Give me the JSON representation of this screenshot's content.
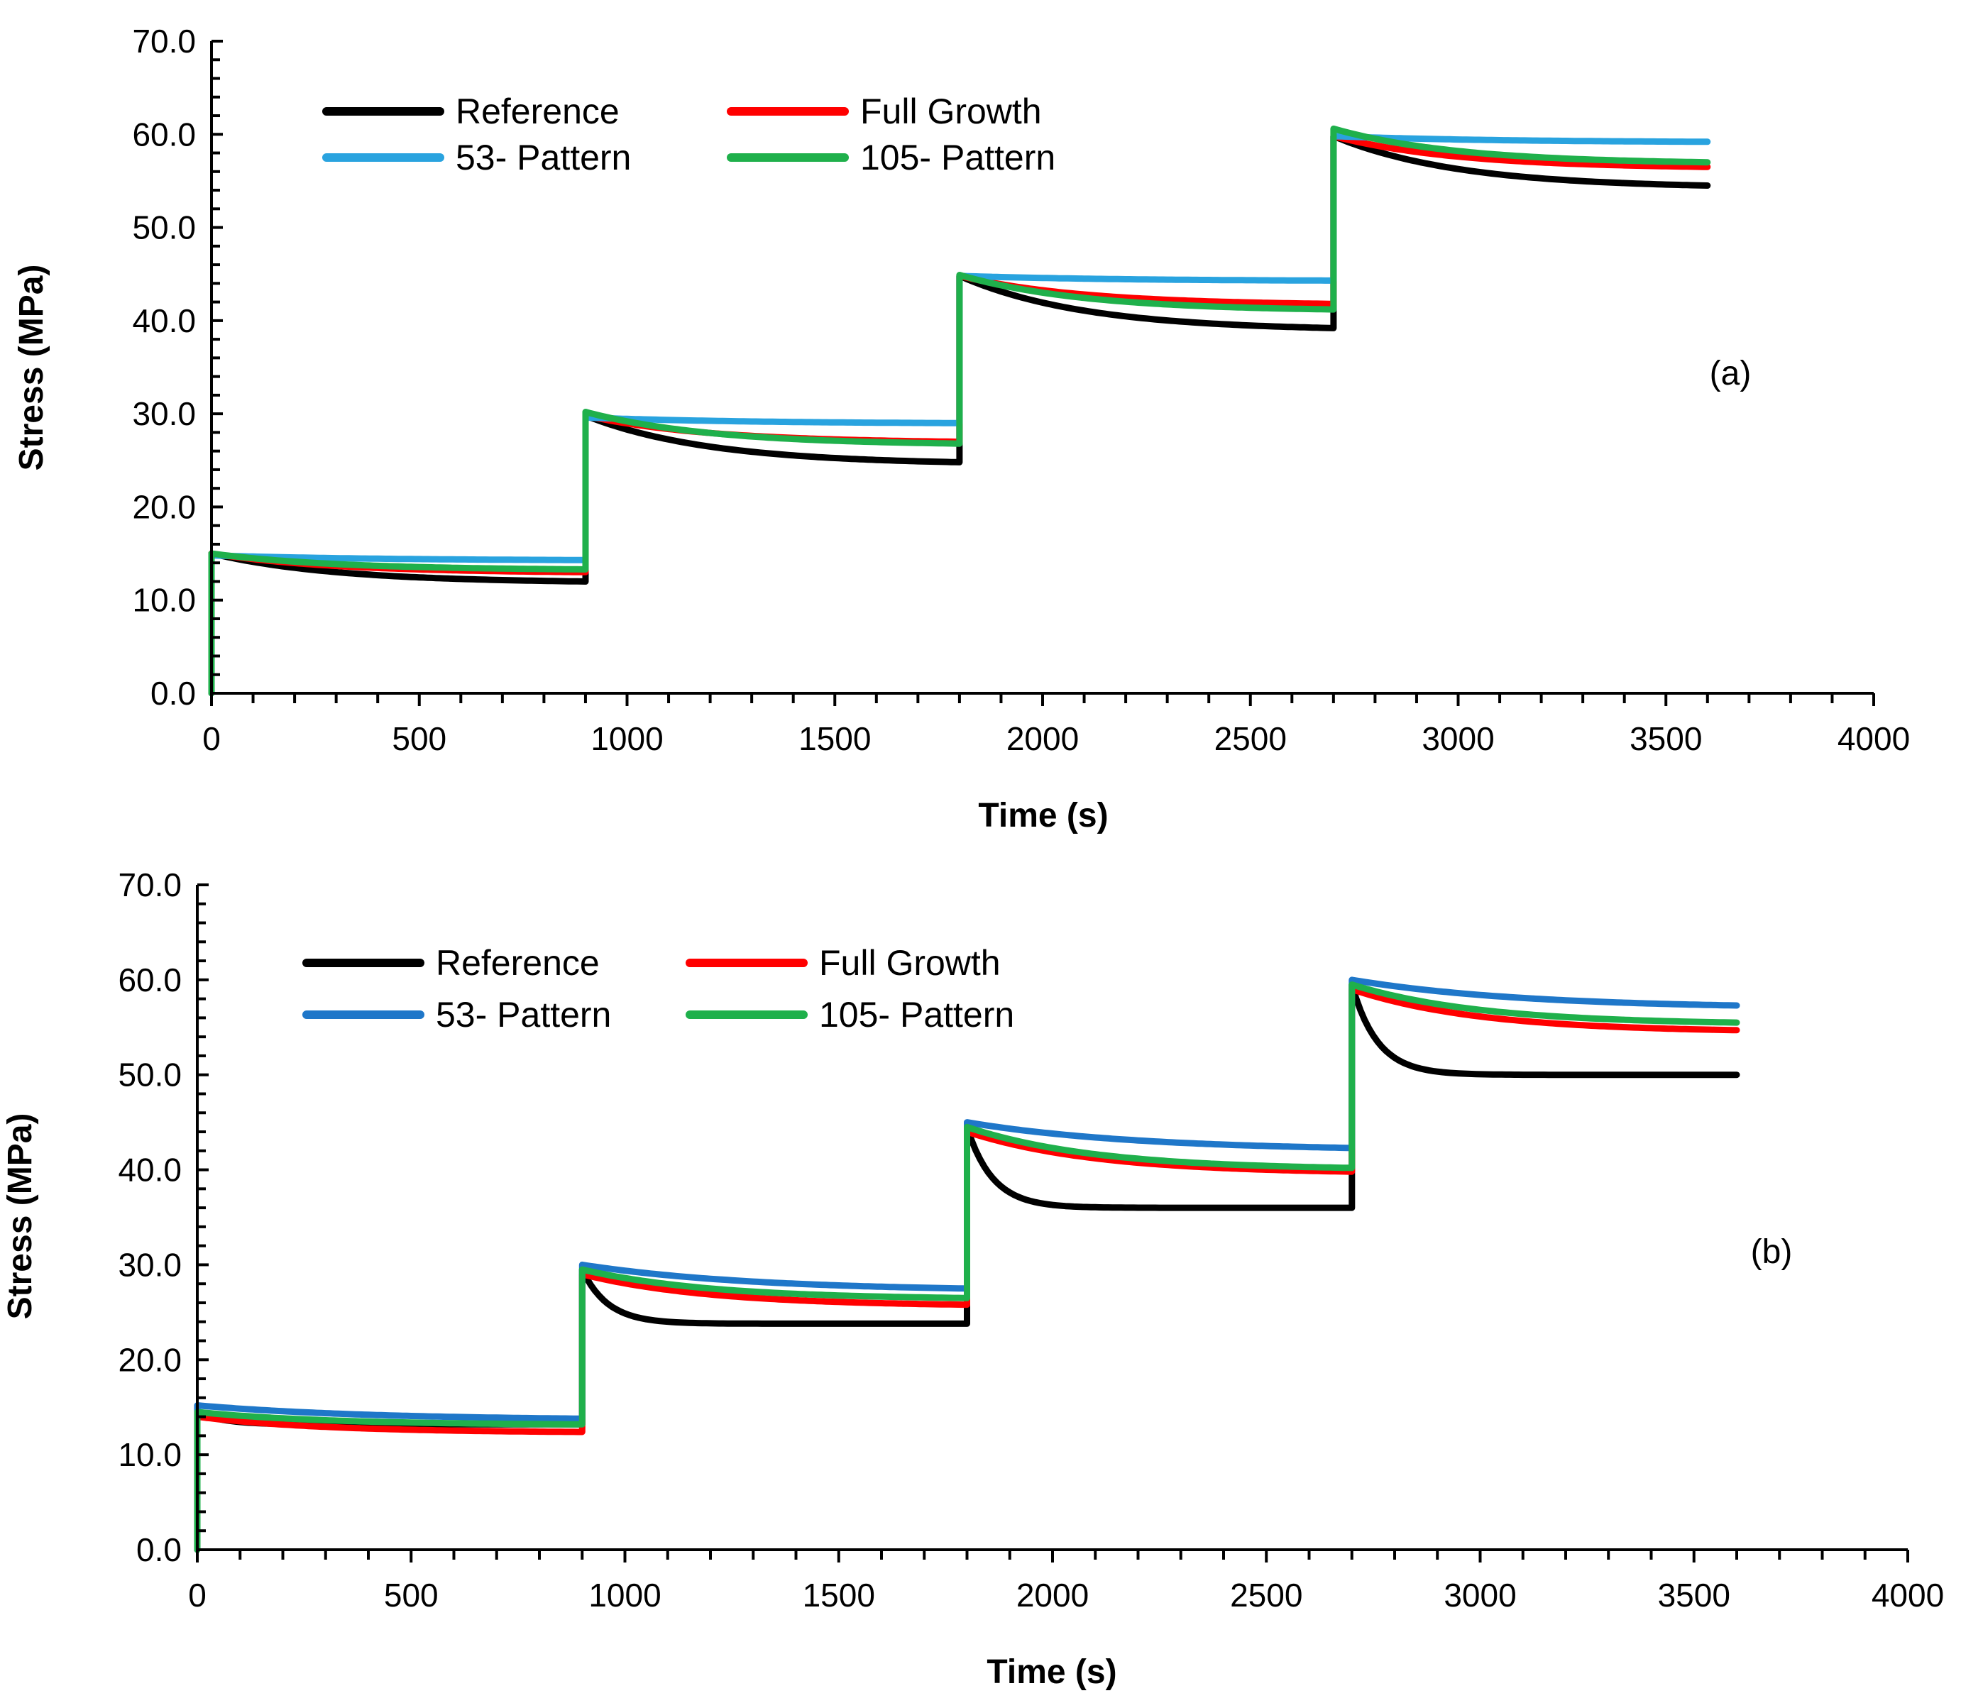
{
  "chart_data": [
    {
      "type": "line",
      "panel_label": "(a)",
      "xlabel": "Time (s)",
      "ylabel": "Stress (MPa)",
      "xlim": [
        0,
        4000
      ],
      "ylim": [
        0,
        70
      ],
      "x_ticks": [
        0,
        500,
        1000,
        1500,
        2000,
        2500,
        3000,
        3500,
        4000
      ],
      "x_tick_labels": [
        "0",
        "500",
        "1000",
        "1500",
        "2000",
        "2500",
        "3000",
        "3500",
        "4000"
      ],
      "y_ticks": [
        0,
        10,
        20,
        30,
        40,
        50,
        60,
        70
      ],
      "y_tick_labels": [
        "0.0",
        "10.0",
        "20.0",
        "30.0",
        "40.0",
        "50.0",
        "60.0",
        "70.0"
      ],
      "legend_position": "top-left",
      "load_steps": [
        900,
        1800,
        2700
      ],
      "series": [
        {
          "name": "Reference",
          "color": "#000000",
          "peaks": [
            15.0,
            29.8,
            44.8,
            59.8
          ],
          "ends": [
            12.0,
            24.8,
            39.2,
            54.5
          ],
          "tau": 300
        },
        {
          "name": "Full Growth",
          "color": "#ff0000",
          "peaks": [
            15.0,
            29.8,
            44.8,
            59.8
          ],
          "ends": [
            13.0,
            27.0,
            41.8,
            56.5
          ],
          "tau": 300
        },
        {
          "name": "53- Pattern",
          "color": "#29a3df",
          "peaks": [
            14.8,
            29.6,
            44.8,
            59.8
          ],
          "ends": [
            14.3,
            29.0,
            44.3,
            59.2
          ],
          "tau": 400
        },
        {
          "name": "105- Pattern",
          "color": "#1fb04b",
          "peaks": [
            15.0,
            30.2,
            44.9,
            60.6
          ],
          "ends": [
            13.3,
            26.8,
            41.2,
            57.0
          ],
          "tau": 300
        }
      ]
    },
    {
      "type": "line",
      "panel_label": "(b)",
      "xlabel": "Time (s)",
      "ylabel": "Stress (MPa)",
      "xlim": [
        0,
        4000
      ],
      "ylim": [
        0,
        70
      ],
      "x_ticks": [
        0,
        500,
        1000,
        1500,
        2000,
        2500,
        3000,
        3500,
        4000
      ],
      "x_tick_labels": [
        "0",
        "500",
        "1000",
        "1500",
        "2000",
        "2500",
        "3000",
        "3500",
        "4000"
      ],
      "y_ticks": [
        0,
        10,
        20,
        30,
        40,
        50,
        60,
        70
      ],
      "y_tick_labels": [
        "0.0",
        "10.0",
        "20.0",
        "30.0",
        "40.0",
        "50.0",
        "60.0",
        "70.0"
      ],
      "legend_position": "top-left",
      "load_steps": [
        900,
        1800,
        2700
      ],
      "series": [
        {
          "name": "Reference",
          "color": "#000000",
          "peaks": [
            14.5,
            29.5,
            44.5,
            59.5
          ],
          "ends": [
            13.2,
            23.8,
            36.0,
            50.0
          ],
          "tau": 60
        },
        {
          "name": "Full Growth",
          "color": "#ff0000",
          "peaks": [
            14.0,
            29.0,
            44.0,
            59.0
          ],
          "ends": [
            12.4,
            25.8,
            39.8,
            54.7
          ],
          "tau": 300
        },
        {
          "name": "53- Pattern",
          "color": "#1f77c9",
          "peaks": [
            15.2,
            30.0,
            45.0,
            60.0
          ],
          "ends": [
            13.8,
            27.5,
            42.3,
            57.3
          ],
          "tau": 400
        },
        {
          "name": "105- Pattern",
          "color": "#1fb04b",
          "peaks": [
            14.5,
            29.5,
            44.5,
            59.5
          ],
          "ends": [
            13.2,
            26.5,
            40.2,
            55.5
          ],
          "tau": 300
        }
      ]
    }
  ]
}
